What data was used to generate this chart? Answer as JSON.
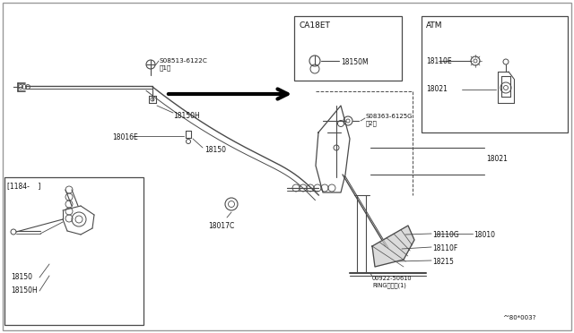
{
  "bg_color": "#ffffff",
  "line_color": "#4a4a4a",
  "text_color": "#111111",
  "fig_width": 6.4,
  "fig_height": 3.72,
  "watermark": "^'80*003?",
  "S08513_label": "S08513-6122C\n（1）",
  "18150H_top": "18150H",
  "18016E": "18016E",
  "18150_mid": "18150",
  "18017C": "18017C",
  "1184": "[1184-    ]",
  "18150_bot": "18150",
  "18150H_bot": "18150H",
  "CA18ET": "CA18ET",
  "18150M": "18150M",
  "ATM": "ATM",
  "18110E": "18110E",
  "18021_atm": "18021",
  "S08363_label": "S08363-6125G\n（2）",
  "18021": "18021",
  "18110G": "18110G",
  "18010": "18010",
  "18110F": "18110F",
  "18215": "18215",
  "ring": "00922-50610\nRINGリング(1)"
}
